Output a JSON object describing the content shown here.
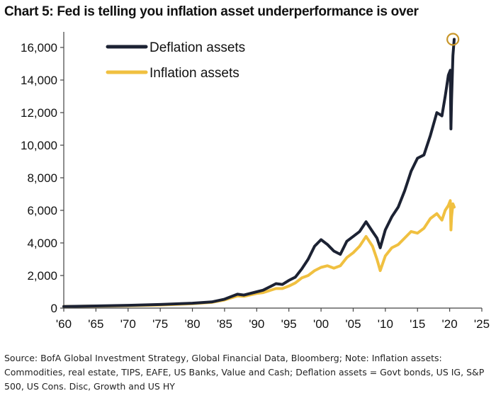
{
  "title": "Chart 5: Fed is telling you inflation asset underperformance is over",
  "source": "Source: BofA Global Investment Strategy, Global Financial Data, Bloomberg; Note: Inflation assets: Commodities, real estate, TIPS, EAFE, US Banks, Value and Cash; Deflation assets = Govt bonds, US IG, S&P 500, US Cons. Disc, Growth and US HY",
  "colors": {
    "deflation": "#1c2233",
    "inflation": "#f0c040",
    "highlight": "#c8962a"
  },
  "chart_data": {
    "type": "line",
    "xlim": [
      1960,
      2025
    ],
    "ylim": [
      0,
      16000
    ],
    "x_ticks": [
      {
        "value": 1960,
        "label": "'60"
      },
      {
        "value": 1965,
        "label": "'65"
      },
      {
        "value": 1970,
        "label": "'70"
      },
      {
        "value": 1975,
        "label": "'75"
      },
      {
        "value": 1980,
        "label": "'80"
      },
      {
        "value": 1985,
        "label": "'85"
      },
      {
        "value": 1990,
        "label": "'90"
      },
      {
        "value": 1995,
        "label": "'95"
      },
      {
        "value": 2000,
        "label": "'00"
      },
      {
        "value": 2005,
        "label": "'05"
      },
      {
        "value": 2010,
        "label": "'10"
      },
      {
        "value": 2015,
        "label": "'15"
      },
      {
        "value": 2020,
        "label": "'20"
      },
      {
        "value": 2025,
        "label": "'25"
      }
    ],
    "y_ticks": [
      {
        "value": 0,
        "label": "0"
      },
      {
        "value": 2000,
        "label": "2,000"
      },
      {
        "value": 4000,
        "label": "4,000"
      },
      {
        "value": 6000,
        "label": "6,000"
      },
      {
        "value": 8000,
        "label": "8,000"
      },
      {
        "value": 10000,
        "label": "10,000"
      },
      {
        "value": 12000,
        "label": "12,000"
      },
      {
        "value": 14000,
        "label": "14,000"
      },
      {
        "value": 16000,
        "label": "16,000"
      }
    ],
    "legend_position": "top-left",
    "highlight_point": {
      "x": 2020.5,
      "y": 16500
    },
    "series": [
      {
        "name": "Deflation assets",
        "color_key": "deflation",
        "points": [
          [
            1960,
            100
          ],
          [
            1965,
            130
          ],
          [
            1970,
            170
          ],
          [
            1975,
            220
          ],
          [
            1980,
            300
          ],
          [
            1983,
            380
          ],
          [
            1985,
            550
          ],
          [
            1987,
            850
          ],
          [
            1988,
            800
          ],
          [
            1990,
            1000
          ],
          [
            1991,
            1100
          ],
          [
            1993,
            1500
          ],
          [
            1994,
            1450
          ],
          [
            1995,
            1700
          ],
          [
            1996,
            1900
          ],
          [
            1997,
            2400
          ],
          [
            1998,
            3000
          ],
          [
            1999,
            3800
          ],
          [
            2000,
            4200
          ],
          [
            2001,
            3900
          ],
          [
            2002,
            3500
          ],
          [
            2003,
            3300
          ],
          [
            2004,
            4100
          ],
          [
            2005,
            4400
          ],
          [
            2006,
            4700
          ],
          [
            2007,
            5300
          ],
          [
            2008,
            4700
          ],
          [
            2008.7,
            4300
          ],
          [
            2009.2,
            3700
          ],
          [
            2010,
            4800
          ],
          [
            2011,
            5600
          ],
          [
            2012,
            6200
          ],
          [
            2013,
            7200
          ],
          [
            2014,
            8400
          ],
          [
            2015,
            9200
          ],
          [
            2016,
            9400
          ],
          [
            2017,
            10600
          ],
          [
            2018,
            12000
          ],
          [
            2018.8,
            11800
          ],
          [
            2019.3,
            13000
          ],
          [
            2019.8,
            14300
          ],
          [
            2020.1,
            14600
          ],
          [
            2020.2,
            11000
          ],
          [
            2020.3,
            12800
          ],
          [
            2020.5,
            15500
          ],
          [
            2020.7,
            16500
          ]
        ]
      },
      {
        "name": "Inflation assets",
        "color_key": "inflation",
        "points": [
          [
            1960,
            100
          ],
          [
            1965,
            120
          ],
          [
            1970,
            150
          ],
          [
            1975,
            190
          ],
          [
            1980,
            270
          ],
          [
            1983,
            350
          ],
          [
            1985,
            500
          ],
          [
            1987,
            750
          ],
          [
            1988,
            720
          ],
          [
            1990,
            900
          ],
          [
            1991,
            950
          ],
          [
            1993,
            1200
          ],
          [
            1994,
            1200
          ],
          [
            1995,
            1350
          ],
          [
            1996,
            1550
          ],
          [
            1997,
            1850
          ],
          [
            1998,
            2000
          ],
          [
            1999,
            2300
          ],
          [
            2000,
            2500
          ],
          [
            2001,
            2600
          ],
          [
            2002,
            2450
          ],
          [
            2003,
            2600
          ],
          [
            2004,
            3100
          ],
          [
            2005,
            3400
          ],
          [
            2006,
            3800
          ],
          [
            2007,
            4400
          ],
          [
            2008,
            3800
          ],
          [
            2008.7,
            3000
          ],
          [
            2009.2,
            2300
          ],
          [
            2010,
            3200
          ],
          [
            2011,
            3700
          ],
          [
            2012,
            3900
          ],
          [
            2013,
            4300
          ],
          [
            2014,
            4700
          ],
          [
            2015,
            4600
          ],
          [
            2016,
            4900
          ],
          [
            2017,
            5500
          ],
          [
            2018,
            5800
          ],
          [
            2018.8,
            5400
          ],
          [
            2019.3,
            6000
          ],
          [
            2019.8,
            6300
          ],
          [
            2020.1,
            6600
          ],
          [
            2020.2,
            4800
          ],
          [
            2020.3,
            5600
          ],
          [
            2020.5,
            6400
          ],
          [
            2020.7,
            6200
          ]
        ]
      }
    ]
  }
}
